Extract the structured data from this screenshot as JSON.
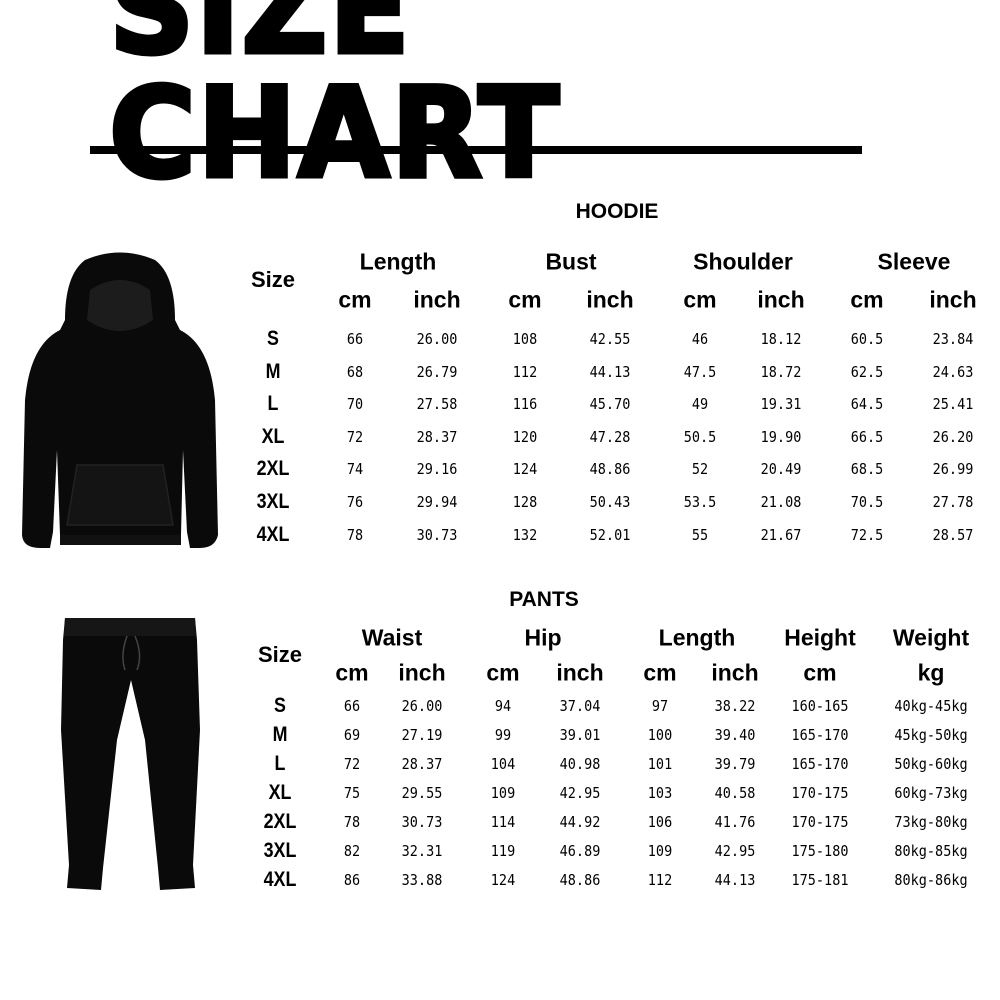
{
  "title": "SIZE CHART",
  "hoodie": {
    "section_title": "HOODIE",
    "size_label": "Size",
    "groups": [
      "Length",
      "Bust",
      "Shoulder",
      "Sleeve"
    ],
    "units": [
      "cm",
      "inch",
      "cm",
      "inch",
      "cm",
      "inch",
      "cm",
      "inch"
    ],
    "rows": [
      [
        "S",
        "66",
        "26.00",
        "108",
        "42.55",
        "46",
        "18.12",
        "60.5",
        "23.84"
      ],
      [
        "M",
        "68",
        "26.79",
        "112",
        "44.13",
        "47.5",
        "18.72",
        "62.5",
        "24.63"
      ],
      [
        "L",
        "70",
        "27.58",
        "116",
        "45.70",
        "49",
        "19.31",
        "64.5",
        "25.41"
      ],
      [
        "XL",
        "72",
        "28.37",
        "120",
        "47.28",
        "50.5",
        "19.90",
        "66.5",
        "26.20"
      ],
      [
        "2XL",
        "74",
        "29.16",
        "124",
        "48.86",
        "52",
        "20.49",
        "68.5",
        "26.99"
      ],
      [
        "3XL",
        "76",
        "29.94",
        "128",
        "50.43",
        "53.5",
        "21.08",
        "70.5",
        "27.78"
      ],
      [
        "4XL",
        "78",
        "30.73",
        "132",
        "52.01",
        "55",
        "21.67",
        "72.5",
        "28.57"
      ]
    ]
  },
  "pants": {
    "section_title": "PANTS",
    "size_label": "Size",
    "groups": [
      "Waist",
      "Hip",
      "Length",
      "Height",
      "Weight"
    ],
    "units": [
      "cm",
      "inch",
      "cm",
      "inch",
      "cm",
      "inch",
      "cm",
      "kg"
    ],
    "rows": [
      [
        "S",
        "66",
        "26.00",
        "94",
        "37.04",
        "97",
        "38.22",
        "160-165",
        "40kg-45kg"
      ],
      [
        "M",
        "69",
        "27.19",
        "99",
        "39.01",
        "100",
        "39.40",
        "165-170",
        "45kg-50kg"
      ],
      [
        "L",
        "72",
        "28.37",
        "104",
        "40.98",
        "101",
        "39.79",
        "165-170",
        "50kg-60kg"
      ],
      [
        "XL",
        "75",
        "29.55",
        "109",
        "42.95",
        "103",
        "40.58",
        "170-175",
        "60kg-73kg"
      ],
      [
        "2XL",
        "78",
        "30.73",
        "114",
        "44.92",
        "106",
        "41.76",
        "170-175",
        "73kg-80kg"
      ],
      [
        "3XL",
        "82",
        "32.31",
        "119",
        "46.89",
        "109",
        "42.95",
        "175-180",
        "80kg-85kg"
      ],
      [
        "4XL",
        "86",
        "33.88",
        "124",
        "48.86",
        "112",
        "44.13",
        "175-181",
        "80kg-86kg"
      ]
    ]
  },
  "colors": {
    "text": "#000000",
    "background": "#ffffff",
    "garment": "#0a0a0a"
  },
  "images": {
    "hoodie": "black-hoodie-photo",
    "pants": "black-sweatpants-photo"
  }
}
